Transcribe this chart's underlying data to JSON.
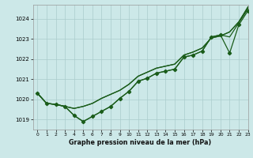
{
  "xlabel": "Graphe pression niveau de la mer (hPa)",
  "xlim": [
    -0.5,
    23
  ],
  "ylim": [
    1018.5,
    1024.7
  ],
  "yticks": [
    1019,
    1020,
    1021,
    1022,
    1023,
    1024
  ],
  "xticks": [
    0,
    1,
    2,
    3,
    4,
    5,
    6,
    7,
    8,
    9,
    10,
    11,
    12,
    13,
    14,
    15,
    16,
    17,
    18,
    19,
    20,
    21,
    22,
    23
  ],
  "bg_color": "#cce8e8",
  "grid_color": "#aacccc",
  "line_color": "#1a5c1a",
  "line1": [
    1020.3,
    1019.8,
    1019.75,
    1019.65,
    1019.2,
    1018.9,
    1019.15,
    1019.4,
    1019.65,
    1020.05,
    1020.4,
    1020.9,
    1021.05,
    1021.3,
    1021.4,
    1021.5,
    1022.1,
    1022.2,
    1022.4,
    1023.1,
    1023.2,
    1022.3,
    1023.7,
    1024.4
  ],
  "line2": [
    1020.3,
    1019.8,
    1019.75,
    1019.65,
    1019.2,
    1018.9,
    1019.15,
    1019.4,
    1019.65,
    1020.05,
    1020.4,
    1020.9,
    1021.05,
    1021.3,
    1021.4,
    1021.5,
    1022.1,
    1022.2,
    1022.4,
    1023.1,
    1023.2,
    1023.1,
    1023.8,
    1024.5
  ],
  "line3": [
    1020.3,
    1019.8,
    1019.75,
    1019.65,
    1019.55,
    1019.65,
    1019.8,
    1020.05,
    1020.25,
    1020.45,
    1020.75,
    1021.15,
    1021.35,
    1021.55,
    1021.65,
    1021.75,
    1022.2,
    1022.35,
    1022.55,
    1023.05,
    1023.15,
    1023.35,
    1023.85,
    1024.55
  ],
  "line4": [
    1020.3,
    1019.8,
    1019.75,
    1019.65,
    1019.55,
    1019.65,
    1019.8,
    1020.05,
    1020.25,
    1020.45,
    1020.75,
    1021.15,
    1021.35,
    1021.55,
    1021.65,
    1021.75,
    1022.2,
    1022.35,
    1022.55,
    1023.05,
    1023.15,
    1023.35,
    1023.85,
    1024.6
  ]
}
